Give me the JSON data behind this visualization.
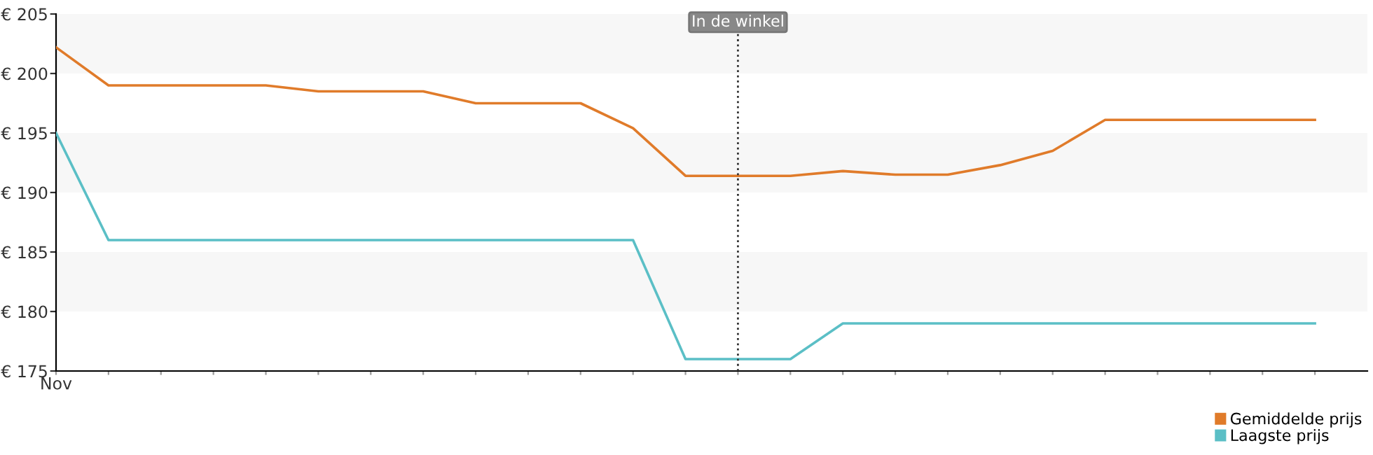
{
  "chart_data": {
    "type": "line",
    "categories": [
      "Nov",
      null,
      null,
      null,
      null,
      null,
      null,
      null,
      null,
      null,
      null,
      null,
      null,
      null,
      null,
      null,
      null,
      null,
      null,
      null,
      null,
      null,
      null,
      null,
      null
    ],
    "series": [
      {
        "name": "Gemiddelde prijs",
        "color": "#e07b2a",
        "values": [
          202.2,
          199,
          199,
          199,
          199,
          198.5,
          198.5,
          198.5,
          197.5,
          197.5,
          197.5,
          195.4,
          191.4,
          191.4,
          191.4,
          191.8,
          191.5,
          191.5,
          192.3,
          193.5,
          196.1,
          196.1,
          196.1,
          196.1,
          196.1
        ]
      },
      {
        "name": "Laagste prijs",
        "color": "#5bbfc6",
        "values": [
          195,
          186,
          186,
          186,
          186,
          186,
          186,
          186,
          186,
          186,
          186,
          186,
          176,
          176,
          176,
          179,
          179,
          179,
          179,
          179,
          179,
          179,
          179,
          179,
          179
        ]
      }
    ],
    "ylim": [
      175,
      205
    ],
    "yticks": [
      {
        "value": 175,
        "label": "€ 175"
      },
      {
        "value": 180,
        "label": "€ 180"
      },
      {
        "value": 185,
        "label": "€ 185"
      },
      {
        "value": 190,
        "label": "€ 190"
      },
      {
        "value": 195,
        "label": "€ 195"
      },
      {
        "value": 200,
        "label": "€ 200"
      },
      {
        "value": 205,
        "label": "€ 205"
      }
    ],
    "bands": [
      {
        "axis": "y",
        "from": 180,
        "to": 185,
        "color": "#f7f7f7"
      },
      {
        "axis": "y",
        "from": 190,
        "to": 195,
        "color": "#f7f7f7"
      },
      {
        "axis": "y",
        "from": 200,
        "to": 205,
        "color": "#f7f7f7"
      }
    ],
    "annotations": [
      "In de winkel"
    ],
    "grid": false,
    "legend": "bottom right",
    "marker": "none",
    "line_style": "solid"
  }
}
